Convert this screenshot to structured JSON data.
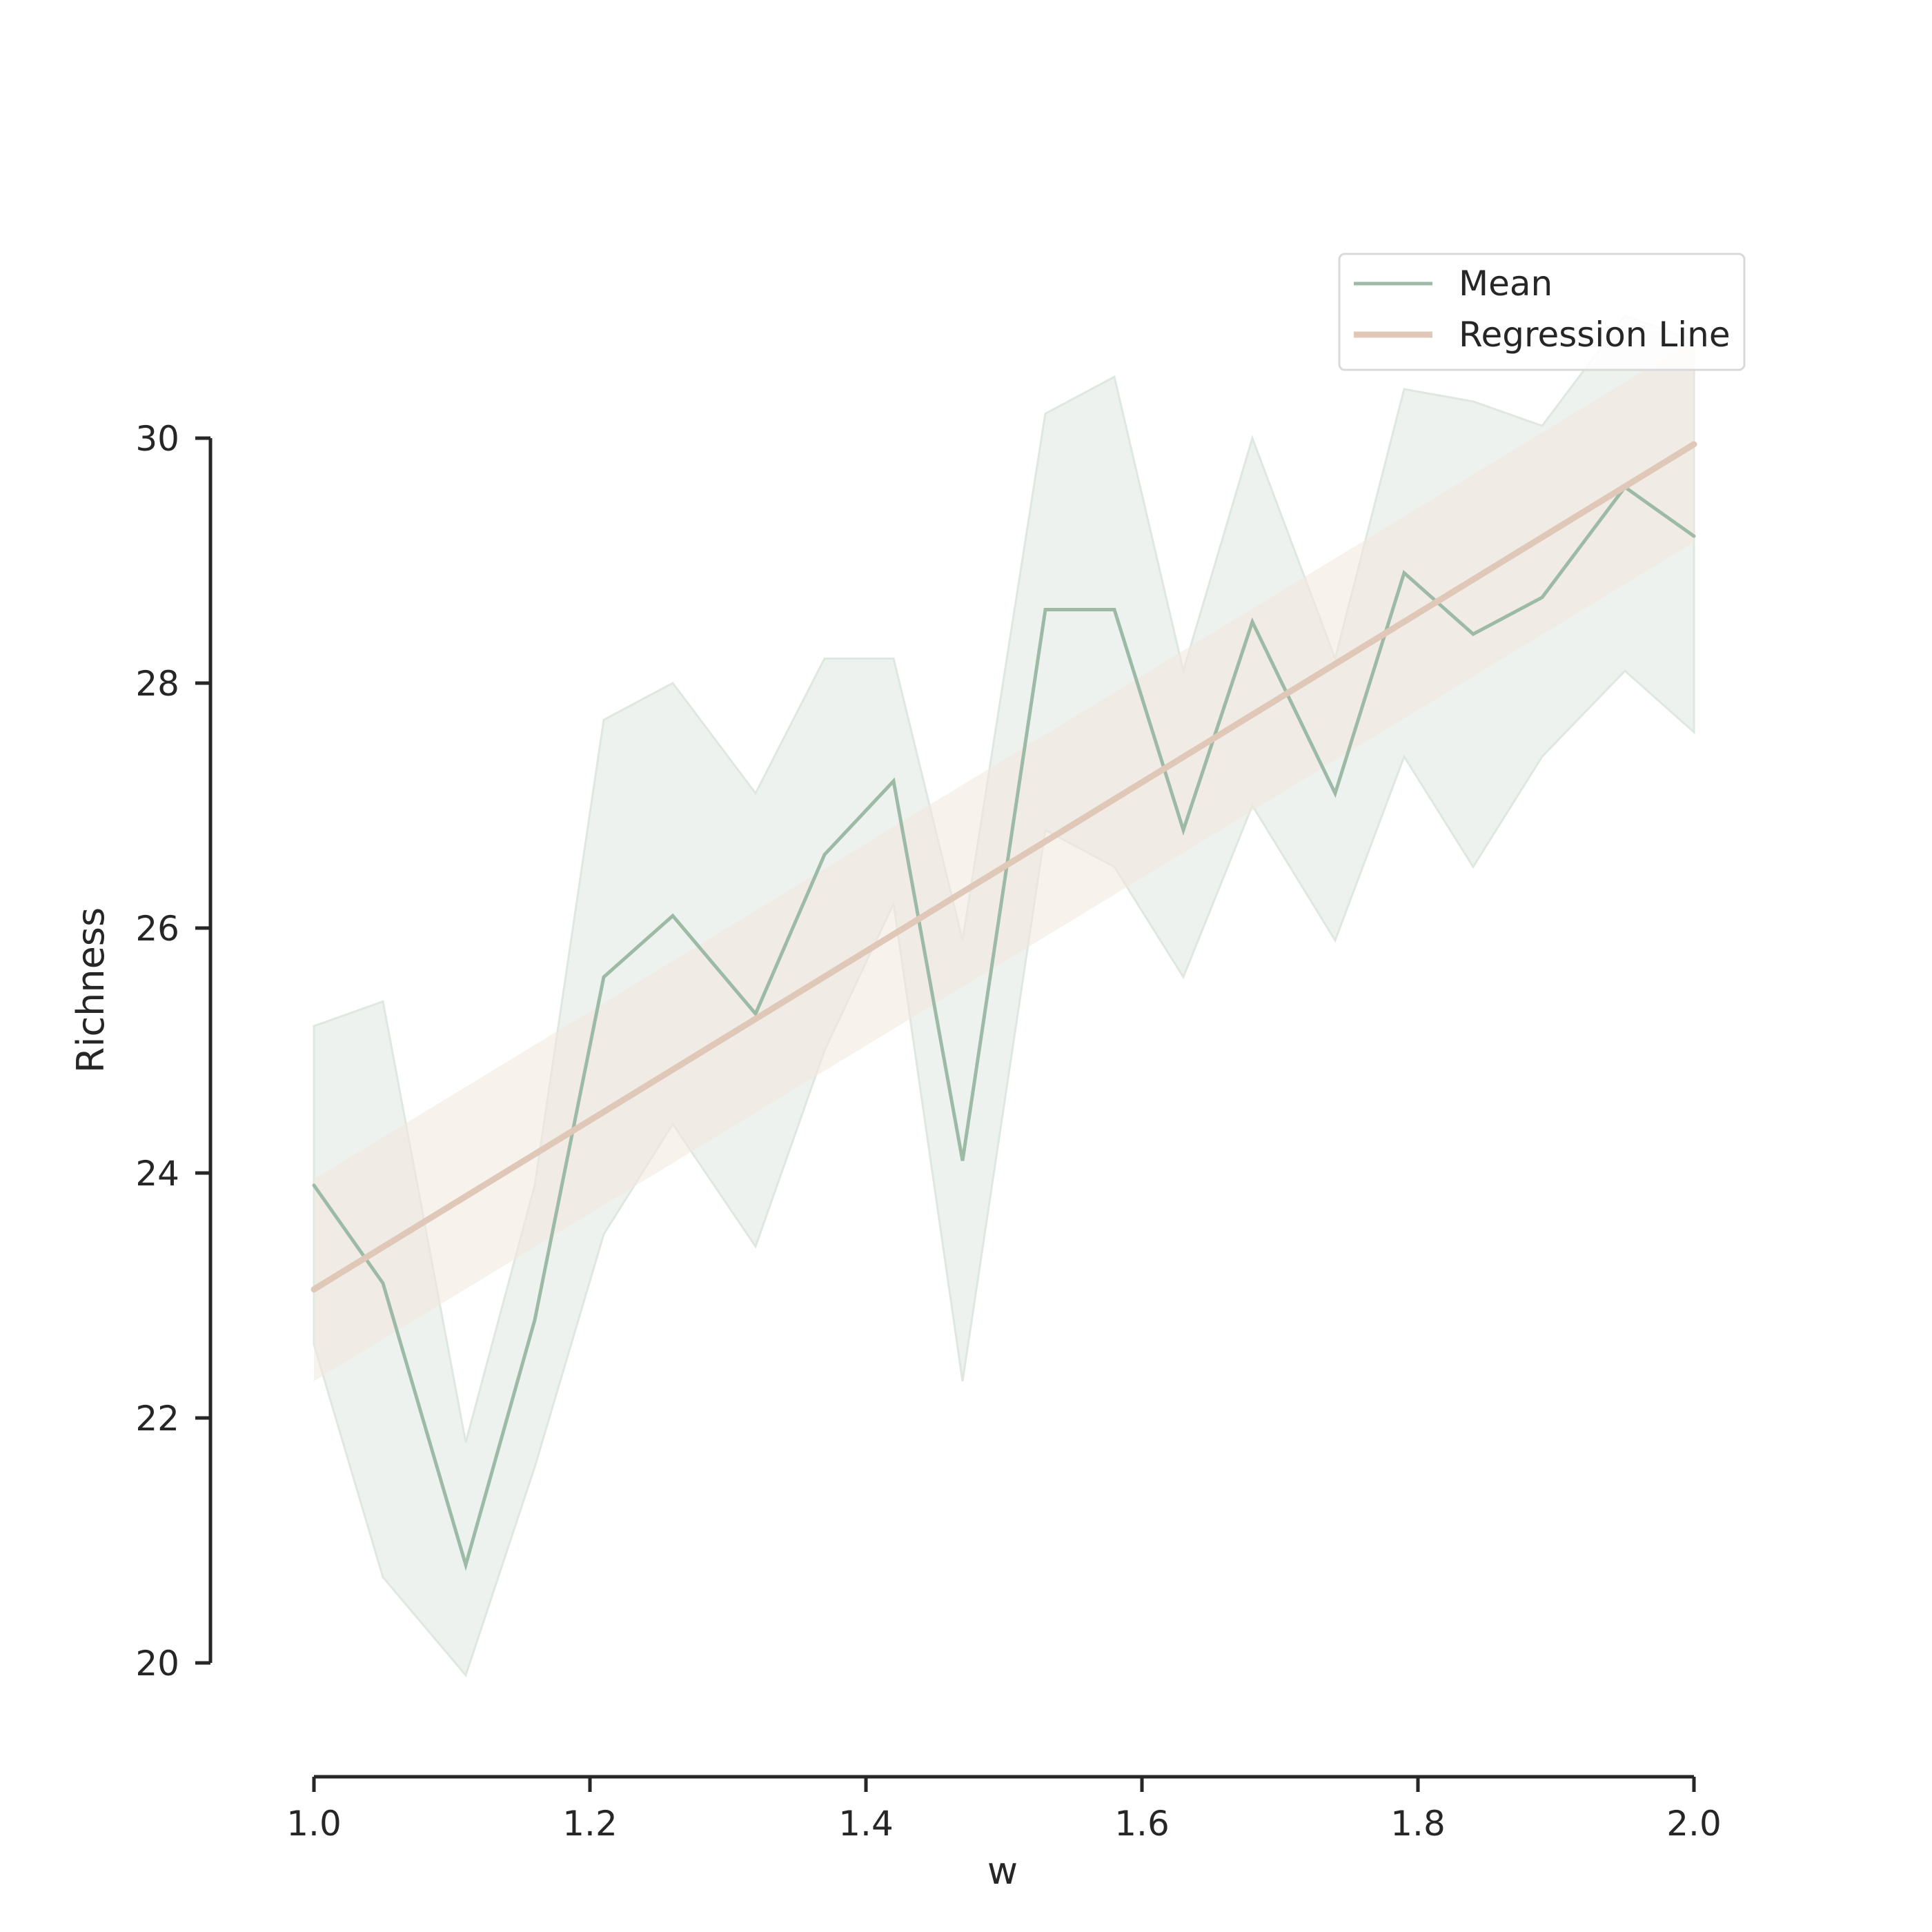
{
  "chart_data": {
    "type": "line",
    "title": "",
    "xlabel": "w",
    "ylabel": "Richness",
    "xlim": [
      1.0,
      2.0
    ],
    "ylim": [
      20,
      30
    ],
    "xticks": [
      "1.0",
      "1.2",
      "1.4",
      "1.6",
      "1.8",
      "2.0"
    ],
    "yticks": [
      "20",
      "22",
      "24",
      "26",
      "28",
      "30"
    ],
    "grid": false,
    "legend_position": "top-right",
    "series": [
      {
        "name": "Mean",
        "kind": "line",
        "color": "#9dbaa6",
        "x": [
          1.0,
          1.05,
          1.11,
          1.16,
          1.21,
          1.26,
          1.32,
          1.37,
          1.42,
          1.47,
          1.53,
          1.58,
          1.63,
          1.68,
          1.74,
          1.79,
          1.84,
          1.89,
          1.95,
          2.0
        ],
        "y": [
          23.9,
          23.1,
          20.8,
          22.8,
          25.6,
          26.1,
          25.3,
          26.6,
          27.2,
          24.1,
          28.6,
          28.6,
          26.8,
          28.5,
          27.1,
          28.9,
          28.4,
          28.7,
          29.6,
          29.2
        ],
        "ci_lower": [
          22.6,
          20.7,
          19.9,
          21.6,
          23.5,
          24.4,
          23.4,
          25.0,
          26.2,
          22.3,
          26.8,
          26.5,
          25.6,
          27.0,
          25.9,
          27.4,
          26.5,
          27.4,
          28.1,
          27.6
        ],
        "ci_upper": [
          25.2,
          25.4,
          21.8,
          23.9,
          27.7,
          28.0,
          27.1,
          28.2,
          28.2,
          25.9,
          30.2,
          30.5,
          28.1,
          30.0,
          28.2,
          30.4,
          30.3,
          30.1,
          31.0,
          30.8
        ],
        "fill_color": "#e3ebe5"
      },
      {
        "name": "Regression Line",
        "kind": "regression",
        "color": "#dfc8b7",
        "x": [
          1.0,
          2.0
        ],
        "y": [
          23.05,
          29.95
        ],
        "ci_lower": [
          22.3,
          29.15
        ],
        "ci_upper": [
          23.95,
          30.8
        ],
        "fill_color": "#f3e8df"
      }
    ]
  }
}
